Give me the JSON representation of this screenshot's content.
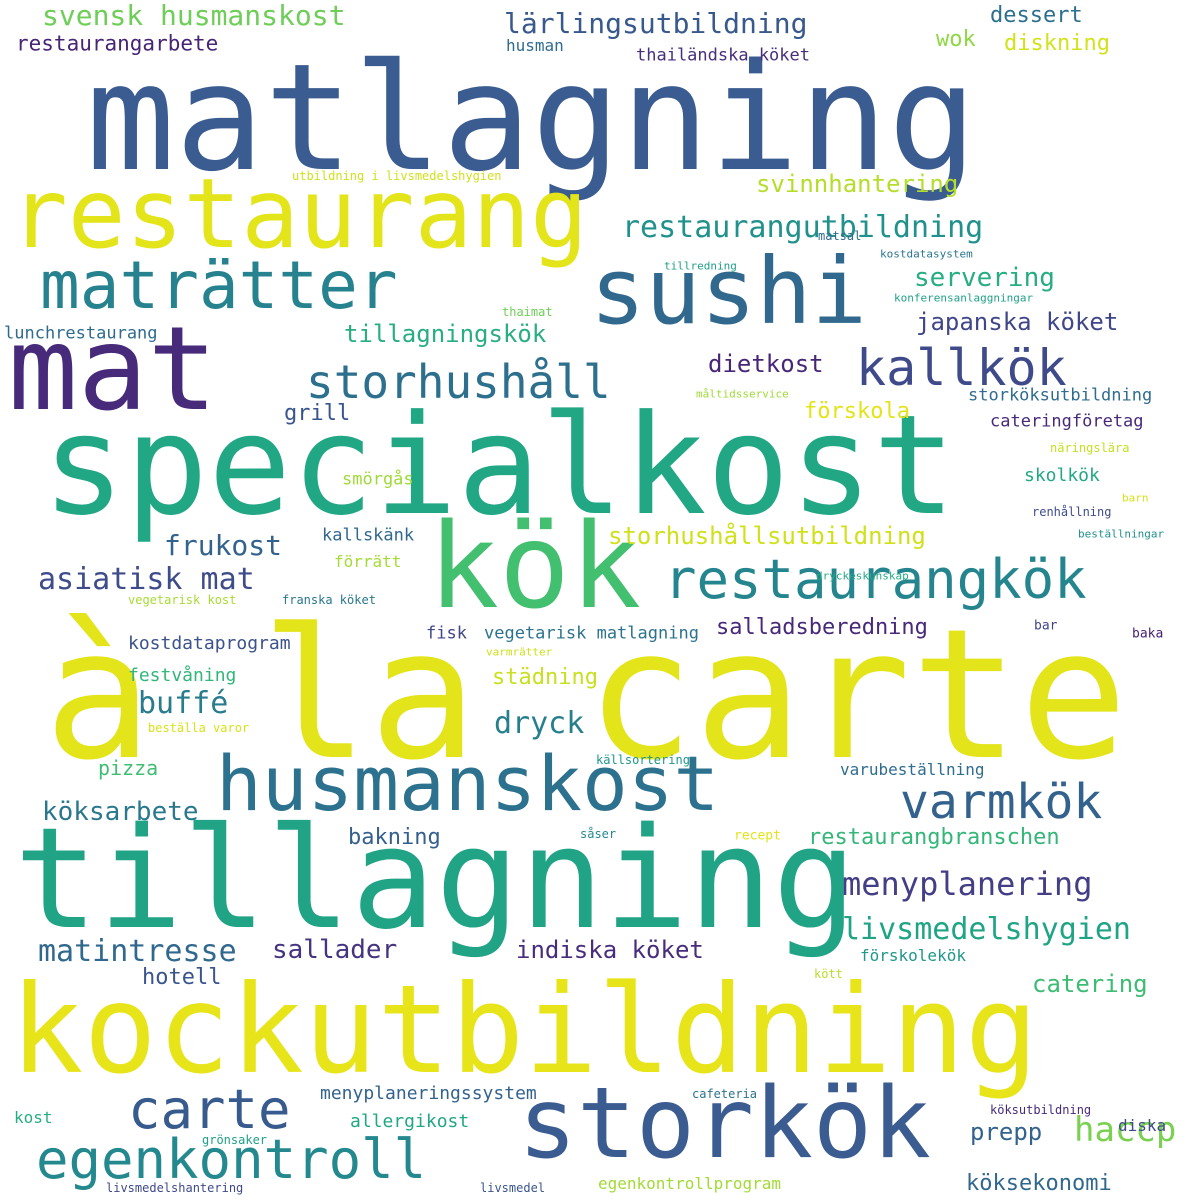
{
  "words": [
    {
      "text": "matlagning",
      "color": "#3b5c91"
    },
    {
      "text": "à la carte",
      "color": "#e3e419"
    },
    {
      "text": "specialkost",
      "color": "#22a785"
    },
    {
      "text": "tillagning",
      "color": "#21a385"
    },
    {
      "text": "kockutbildning",
      "color": "#e7e419"
    },
    {
      "text": "restaurang",
      "color": "#e3e419"
    },
    {
      "text": "kök",
      "color": "#43bf70"
    },
    {
      "text": "mat",
      "color": "#472a79"
    },
    {
      "text": "sushi",
      "color": "#31688e"
    },
    {
      "text": "storkök",
      "color": "#3b5c91"
    },
    {
      "text": "husmanskost",
      "color": "#2c728e"
    },
    {
      "text": "maträtter",
      "color": "#26828e"
    },
    {
      "text": "restaurangkök",
      "color": "#25858e"
    },
    {
      "text": "carte",
      "color": "#375b8d"
    },
    {
      "text": "egenkontroll",
      "color": "#23898e"
    },
    {
      "text": "kallkök",
      "color": "#3e4a89"
    },
    {
      "text": "storhushåll",
      "color": "#2d708e"
    },
    {
      "text": "varmkök",
      "color": "#33638d"
    },
    {
      "text": "restaurangutbildning",
      "color": "#21918c"
    },
    {
      "text": "menyplanering",
      "color": "#433e85"
    },
    {
      "text": "livsmedelshygien",
      "color": "#20a486"
    },
    {
      "text": "svensk husmanskost",
      "color": "#6ece58"
    },
    {
      "text": "lärlingsutbildning",
      "color": "#38598c"
    },
    {
      "text": "asiatisk mat",
      "color": "#3e4c8a"
    },
    {
      "text": "matintresse",
      "color": "#31688e"
    },
    {
      "text": "haccp",
      "color": "#7ad151"
    },
    {
      "text": "restaurangarbete",
      "color": "#482475"
    },
    {
      "text": "servering",
      "color": "#27ad81"
    },
    {
      "text": "tillagningskök",
      "color": "#28ae80"
    },
    {
      "text": "japanska köket",
      "color": "#3f4788"
    },
    {
      "text": "frukost",
      "color": "#33638d"
    },
    {
      "text": "dryck",
      "color": "#277f8e"
    },
    {
      "text": "buffé",
      "color": "#287c8e"
    },
    {
      "text": "sallader",
      "color": "#463480"
    },
    {
      "text": "indiska köket",
      "color": "#472d7b"
    },
    {
      "text": "salladsberedning",
      "color": "#482878"
    },
    {
      "text": "storhushållsutbildning",
      "color": "#d0e11c"
    },
    {
      "text": "svinnhantering",
      "color": "#b5de2b"
    },
    {
      "text": "dietkost",
      "color": "#482677"
    },
    {
      "text": "restaurangbranschen",
      "color": "#34b679"
    },
    {
      "text": "köksarbete",
      "color": "#2a788e"
    },
    {
      "text": "catering",
      "color": "#3dbc74"
    },
    {
      "text": "prepp",
      "color": "#33638d"
    },
    {
      "text": "köksekonomi",
      "color": "#31688e"
    },
    {
      "text": "dessert",
      "color": "#2d708e"
    },
    {
      "text": "wok",
      "color": "#8fd744"
    },
    {
      "text": "diskning",
      "color": "#d2e21b"
    },
    {
      "text": "grill",
      "color": "#39568c"
    },
    {
      "text": "förskola",
      "color": "#e3e418"
    },
    {
      "text": "hotell",
      "color": "#39558c"
    },
    {
      "text": "bakning",
      "color": "#355f8d"
    },
    {
      "text": "städning",
      "color": "#c8e020"
    },
    {
      "text": "pizza",
      "color": "#40bd72"
    },
    {
      "text": "allergikost",
      "color": "#22a785"
    },
    {
      "text": "menyplaneringssystem",
      "color": "#33638d"
    },
    {
      "text": "fisk",
      "color": "#404688"
    },
    {
      "text": "vegetarisk matlagning",
      "color": "#2c738e"
    },
    {
      "text": "kostdataprogram",
      "color": "#3b528b"
    },
    {
      "text": "festvåning",
      "color": "#32b67a"
    },
    {
      "text": "storköksutbildning",
      "color": "#2f6c8e"
    },
    {
      "text": "cateringföretag",
      "color": "#482979"
    },
    {
      "text": "skolkök",
      "color": "#22a884"
    },
    {
      "text": "smörgås",
      "color": "#a0da39"
    },
    {
      "text": "lunchrestaurang",
      "color": "#2f6b8e"
    },
    {
      "text": "thailändska köket",
      "color": "#472f7d"
    },
    {
      "text": "husman",
      "color": "#2f6b8e"
    },
    {
      "text": "kallskänk",
      "color": "#31688e"
    },
    {
      "text": "förrätt",
      "color": "#a5db36"
    },
    {
      "text": "förskolekök",
      "color": "#1f978b"
    },
    {
      "text": "egenkontrollprogram",
      "color": "#a2da37"
    },
    {
      "text": "varubeställning",
      "color": "#2f6c8e"
    },
    {
      "text": "kost",
      "color": "#27ad81"
    },
    {
      "text": "diska",
      "color": "#3e4a89"
    },
    {
      "text": "köksutbildning",
      "color": "#472c7a"
    },
    {
      "text": "kött",
      "color": "#b8de29"
    },
    {
      "text": "recept",
      "color": "#e2e418"
    },
    {
      "text": "såser",
      "color": "#23888e"
    },
    {
      "text": "grönsaker",
      "color": "#1fa088"
    },
    {
      "text": "cafeteria",
      "color": "#2c728e"
    },
    {
      "text": "livsmedelshantering",
      "color": "#3e4989"
    },
    {
      "text": "livsmedel",
      "color": "#39558c"
    },
    {
      "text": "baka",
      "color": "#482173"
    },
    {
      "text": "bar",
      "color": "#404588"
    },
    {
      "text": "källsortering",
      "color": "#1f968b"
    },
    {
      "text": "varmrätter",
      "color": "#cde11d"
    },
    {
      "text": "beställa varor",
      "color": "#d8e219"
    },
    {
      "text": "vegetarisk kost",
      "color": "#a8db34"
    },
    {
      "text": "franska köket",
      "color": "#2a768e"
    },
    {
      "text": "dryckeskunskap",
      "color": "#25ab82"
    },
    {
      "text": "beställningar",
      "color": "#21908d"
    },
    {
      "text": "renhållning",
      "color": "#3e4c8a"
    },
    {
      "text": "barn",
      "color": "#d5e21a"
    },
    {
      "text": "näringslära",
      "color": "#c5e021"
    },
    {
      "text": "måltidsservice",
      "color": "#a0da39"
    },
    {
      "text": "konferensanlaggningar",
      "color": "#1fa188"
    },
    {
      "text": "thaimat",
      "color": "#6ece58"
    },
    {
      "text": "tillredning",
      "color": "#1f9e89"
    },
    {
      "text": "kostdatasystem",
      "color": "#2a768e"
    },
    {
      "text": "matsal",
      "color": "#2f6c8e"
    },
    {
      "text": "utbildning i livsmedelshygien",
      "color": "#d0e11c"
    }
  ]
}
